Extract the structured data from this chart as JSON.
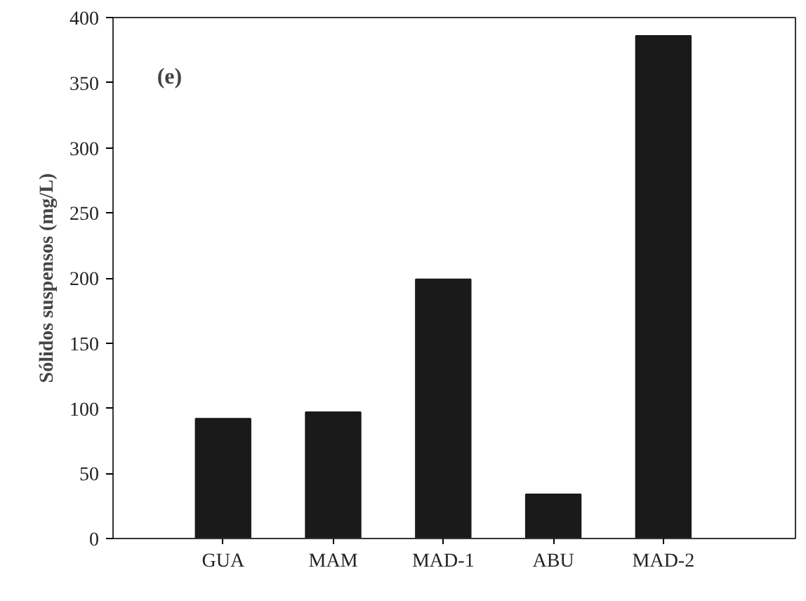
{
  "chart_data": {
    "type": "bar",
    "ylabel": "Sólidos suspensos (mg/L)",
    "annotations": [
      "(e)"
    ],
    "categories": [
      "GUA",
      "MAM",
      "MAD-1",
      "ABU",
      "MAD-2"
    ],
    "values": [
      92,
      97,
      199,
      34,
      386
    ],
    "color": "#1a1a1a",
    "ylim": [
      0,
      400
    ],
    "yticks": [
      0,
      50,
      100,
      150,
      200,
      250,
      300,
      350,
      400
    ],
    "grid": false
  }
}
